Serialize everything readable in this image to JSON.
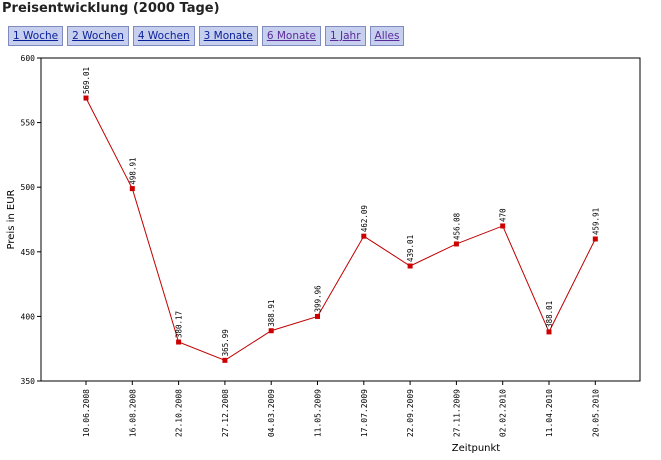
{
  "page": {
    "title": "Preisentwicklung (2000 Tage)"
  },
  "tabs": [
    {
      "label": "1 Woche",
      "visited": false
    },
    {
      "label": "2 Wochen",
      "visited": false
    },
    {
      "label": "4 Wochen",
      "visited": false
    },
    {
      "label": "3 Monate",
      "visited": false
    },
    {
      "label": "6 Monate",
      "visited": true
    },
    {
      "label": "1 Jahr",
      "visited": true
    },
    {
      "label": "Alles",
      "visited": true
    }
  ],
  "colors": {
    "line": "#c00000",
    "marker": "#cc0000",
    "tab_bg": "#c7cfee"
  },
  "chart_data": {
    "type": "line",
    "title": "",
    "xlabel": "Zeitpunkt",
    "ylabel": "Preis in EUR",
    "ylim": [
      350,
      600
    ],
    "yticks": [
      350,
      400,
      450,
      500,
      550,
      600
    ],
    "grid": false,
    "categories": [
      "10.06.2008",
      "16.08.2008",
      "22.10.2008",
      "27.12.2008",
      "04.03.2009",
      "11.05.2009",
      "17.07.2009",
      "22.09.2009",
      "27.11.2009",
      "02.02.2010",
      "11.04.2010",
      "20.05.2010"
    ],
    "values": [
      569.01,
      498.91,
      380.17,
      365.99,
      388.91,
      399.96,
      462.09,
      439.01,
      456.08,
      470,
      388.01,
      459.91
    ],
    "value_labels": [
      "569.01",
      "498.91",
      "380.17",
      "365.99",
      "388.91",
      "399.96",
      "462.09",
      "439.01",
      "456.08",
      "470",
      "388.01",
      "459.91"
    ]
  }
}
